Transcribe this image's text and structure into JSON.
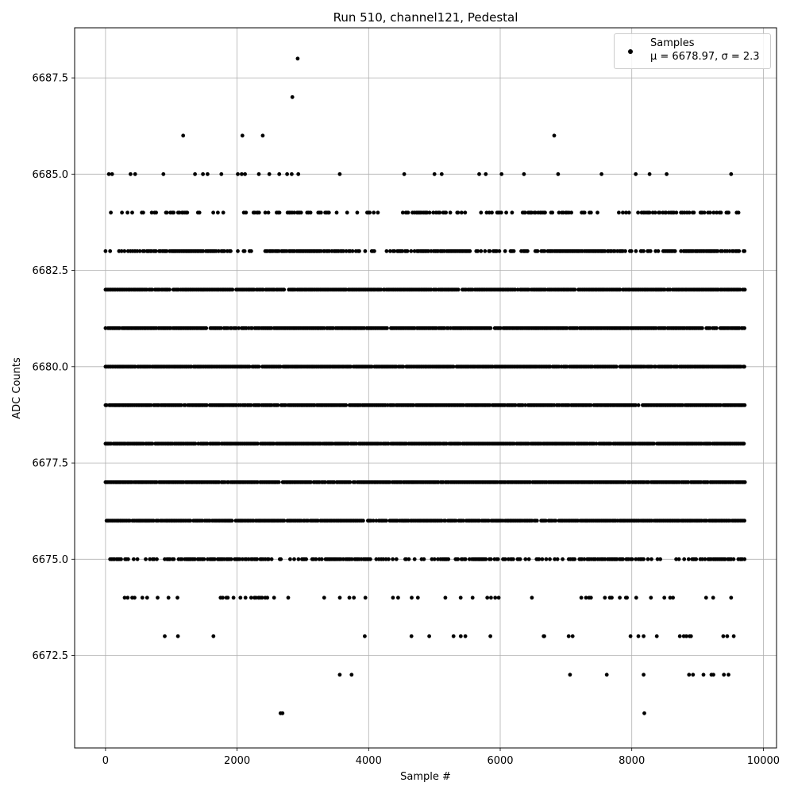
{
  "chart_data": {
    "type": "scatter",
    "title": "Run 510, channel121, Pedestal",
    "xlabel": "Sample #",
    "ylabel": "ADC Counts",
    "xlim": [
      -470,
      10200
    ],
    "ylim": [
      6670.1,
      6688.8
    ],
    "xticks": [
      0,
      2000,
      4000,
      6000,
      8000,
      10000
    ],
    "yticks": [
      6672.5,
      6675.0,
      6677.5,
      6680.0,
      6682.5,
      6685.0,
      6687.5
    ],
    "ytick_labels": [
      "6672.5",
      "6675.0",
      "6677.5",
      "6680.0",
      "6682.5",
      "6685.0",
      "6687.5"
    ],
    "grid": true,
    "legend": {
      "placement": "top-right",
      "label": "Samples",
      "stats_prefix": "μ = 6678.97, ",
      "stats_suffix": "σ = 2.3"
    },
    "series": [
      {
        "name": "Samples",
        "color": "#000000",
        "marker": "circle",
        "n_samples": 9720,
        "dense_levels": [
          6676,
          6677,
          6678,
          6679,
          6680,
          6681,
          6682
        ],
        "level_density": {
          "6683": 0.6,
          "6684": 0.3,
          "6675": 0.45,
          "6674": 0.1
        },
        "sparse_points": {
          "6685": [
            50,
            100,
            380,
            450,
            880,
            1360,
            1480,
            1550,
            1760,
            2010,
            2070,
            2120,
            2330,
            2490,
            2640,
            2760,
            2830,
            2930,
            3560,
            4540,
            5000,
            5110,
            5680,
            5780,
            6020,
            6360,
            6880,
            7540,
            8060,
            8270,
            8530,
            9510
          ],
          "6686": [
            1180,
            2080,
            2390,
            6820
          ],
          "6687": [
            2840
          ],
          "6688": [
            2920
          ],
          "6673": [
            900,
            1100,
            1640,
            3940,
            4650,
            4920,
            5290,
            5400,
            5470,
            5850,
            6660,
            6670,
            7040,
            7100,
            7980,
            8100,
            8180,
            8380,
            8730,
            8790,
            8830,
            8880,
            8900,
            9390,
            9450,
            9550
          ],
          "6672": [
            3560,
            3740,
            7060,
            7620,
            8180,
            8870,
            8930,
            9090,
            9210,
            9240,
            9400,
            9470
          ],
          "6671": [
            2660,
            2690,
            8190
          ]
        }
      }
    ]
  }
}
